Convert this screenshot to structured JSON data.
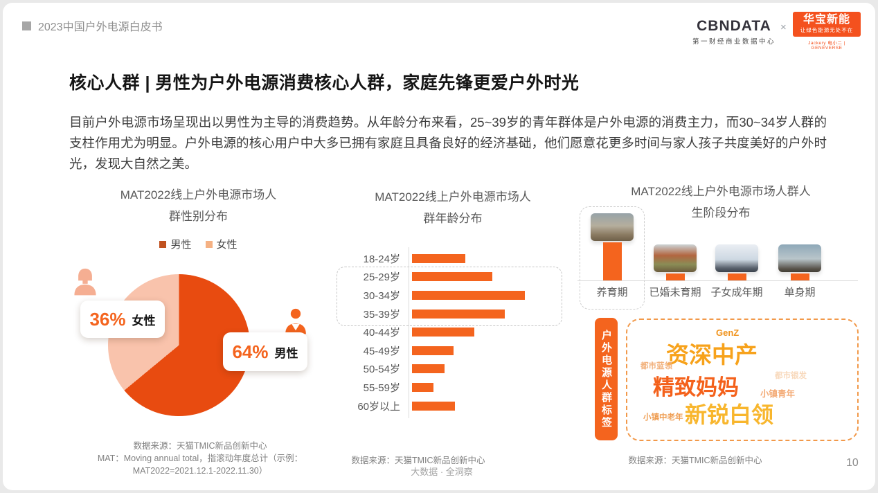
{
  "header": {
    "breadcrumb": "2023中国户外电源白皮书",
    "cbndata": {
      "name": "CBNDATA",
      "sub": "第一财经商业数据中心"
    },
    "separator": "×",
    "huabao": {
      "name": "华宝新能",
      "sub": "让绿色能源无处不在",
      "tagline": "Jackery 电小二 | GENEVERSE"
    },
    "brand_orange": "#F4511E"
  },
  "title": "核心人群 | 男性为户外电源消费核心人群，家庭先锋更爱户外时光",
  "body": "目前户外电源市场呈现出以男性为主导的消费趋势。从年龄分布来看，25~39岁的青年群体是户外电源的消费主力，而30~34岁人群的支柱作用尤为明显。户外电源的核心用户中大多已拥有家庭且具备良好的经济基础，他们愿意花更多时间与家人孩子共度美好的户外时光，发现大自然之美。",
  "chart_data": [
    {
      "type": "pie",
      "title": "MAT2022线上户外电源市场人群性别分布",
      "title_lines": [
        "MAT2022线上户外电源市场人",
        "群性别分布"
      ],
      "legend": [
        "男性",
        "女性"
      ],
      "legend_position": "top",
      "categories": [
        "男性",
        "女性"
      ],
      "values": [
        64,
        36
      ],
      "colors": [
        "#E84B10",
        "#F9C3AC"
      ],
      "legend_colors": [
        "#C0511F",
        "#F5B183"
      ],
      "callouts": [
        {
          "value": "64%",
          "label": "男性",
          "icon": "male-person-icon",
          "icon_color": "#F4641E"
        },
        {
          "value": "36%",
          "label": "女性",
          "icon": "female-person-icon",
          "icon_color": "#F5AE92"
        }
      ],
      "source": "数据来源：天猫TMIC新品创新中心",
      "source_note_lines": [
        "MAT：Moving annual total，指滚动年度总计（示例：",
        "MAT2022=2021.12.1-2022.11.30）"
      ]
    },
    {
      "type": "bar",
      "orientation": "horizontal",
      "title": "MAT2022线上户外电源市场人群年龄分布",
      "title_lines": [
        "MAT2022线上户外电源市场人",
        "群年龄分布"
      ],
      "categories": [
        "18-24岁",
        "25-29岁",
        "30-34岁",
        "35-39岁",
        "40-44岁",
        "45-49岁",
        "50-54岁",
        "55-59岁",
        "60岁以上"
      ],
      "values": [
        47,
        71,
        100,
        82,
        55,
        37,
        29,
        19,
        38
      ],
      "values_estimated": true,
      "highlight_categories": [
        "25-29岁",
        "30-34岁",
        "35-39岁"
      ],
      "bar_color": "#F4641E",
      "grid": false,
      "source": "数据来源：天猫TMIC新品创新中心"
    },
    {
      "type": "bar",
      "orientation": "vertical",
      "title": "MAT2022线上户外电源市场人群人生阶段分布",
      "title_lines": [
        "MAT2022线上户外电源市场人群人",
        "生阶段分布"
      ],
      "categories": [
        "养育期",
        "已婚未育期",
        "子女成年期",
        "单身期"
      ],
      "values": [
        100,
        18,
        18,
        18
      ],
      "values_estimated": true,
      "highlight_categories": [
        "养育期"
      ],
      "bar_color": "#F4641E",
      "photo_names": [
        "camping-family-photo",
        "desert-couple-photo",
        "snow-offroad-photo",
        "mountain-hiker-photo"
      ],
      "grid": false,
      "source": "数据来源：天猫TMIC新品创新中心"
    }
  ],
  "tags": {
    "panel_label": "户外电源人群标签",
    "items": [
      {
        "text": "GenZ",
        "color": "#F0941E",
        "emphasis": "low"
      },
      {
        "text": "资深中产",
        "color": "#F7A21B",
        "emphasis": "high"
      },
      {
        "text": "都市蓝领",
        "color": "#F2B27E",
        "emphasis": "low"
      },
      {
        "text": "精致妈妈",
        "color": "#F4611B",
        "emphasis": "high"
      },
      {
        "text": "都市银发",
        "color": "#F8D9BC",
        "emphasis": "low"
      },
      {
        "text": "小镇青年",
        "color": "#F3A973",
        "emphasis": "low"
      },
      {
        "text": "小镇中老年",
        "color": "#EF9E53",
        "emphasis": "low"
      },
      {
        "text": "新锐白领",
        "color": "#F8B62D",
        "emphasis": "high"
      }
    ]
  },
  "footer": {
    "center": "大数据 · 全洞察",
    "page": "10"
  }
}
